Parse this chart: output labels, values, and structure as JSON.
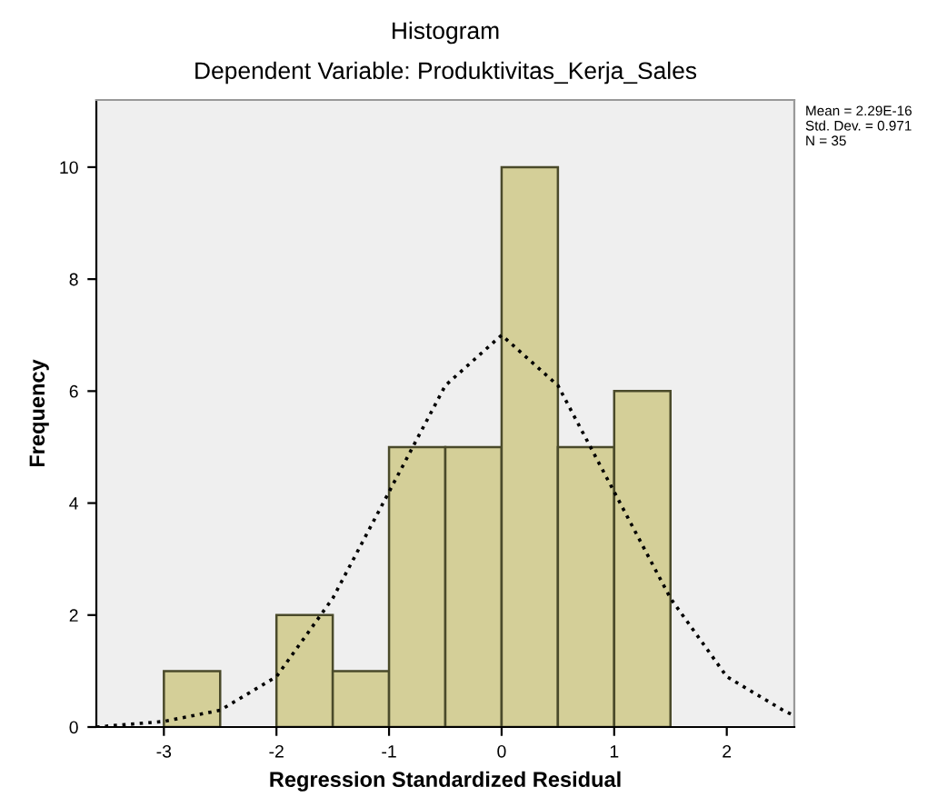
{
  "chart_data": {
    "type": "histogram",
    "title": "Histogram",
    "subtitle": "Dependent Variable: Produktivitas_Kerja_Sales",
    "xlabel": "Regression Standardized Residual",
    "ylabel": "Frequency",
    "bins": [
      -3.0,
      -2.5,
      -2.0,
      -1.5,
      -1.0,
      -0.5,
      0.0,
      0.5,
      1.0,
      1.5
    ],
    "values": [
      1,
      0,
      2,
      1,
      5,
      5,
      10,
      5,
      6
    ],
    "color": "#d4cf98",
    "series": [
      {
        "type": "line",
        "color": "#000000",
        "line_style": "dotted",
        "x": [
          -3.6,
          -3.0,
          -2.5,
          -2.0,
          -1.5,
          -1.0,
          -0.5,
          0.0,
          0.5,
          1.0,
          1.5,
          2.0,
          2.5,
          2.6
        ],
        "values": [
          0.0,
          0.1,
          0.3,
          0.9,
          2.3,
          4.2,
          6.1,
          7.0,
          6.1,
          4.2,
          2.3,
          0.9,
          0.3,
          0.2
        ]
      }
    ],
    "annotations": [
      "Mean = 2.29E-16\nStd. Dev. = 0.971\nN = 35"
    ],
    "xlim": [
      -3.6,
      2.6
    ],
    "ylim": [
      0,
      11.2
    ],
    "xticks": [
      -3,
      -2,
      -1,
      0,
      1,
      2
    ],
    "yticks": [
      0,
      2,
      4,
      6,
      8,
      10
    ],
    "grid": false,
    "legend": false
  }
}
